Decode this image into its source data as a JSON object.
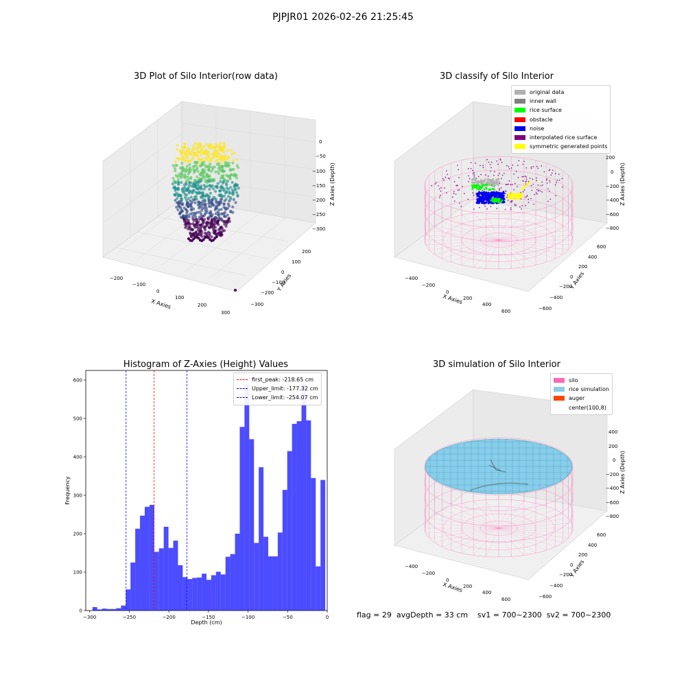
{
  "figure": {
    "suptitle": "PJPJR01 2026-02-26 21:25:45",
    "status_text": "flag = 29  avgDepth = 33 cm    sv1 = 700~2300  sv2 = 700~2300"
  },
  "panels": {
    "raw": {
      "title": "3D Plot of Silo Interior(row data)",
      "xlabel": "X Axies",
      "ylabel": "Y Axies",
      "zlabel": "Z Axies (Depth)",
      "xticks": [
        "−200",
        "−100",
        "0",
        "100",
        "200",
        "300"
      ],
      "yticks": [
        "200",
        "100",
        "0",
        "−100",
        "−200",
        "−300"
      ],
      "zticks": [
        "0",
        "−50",
        "−100",
        "−150",
        "−200",
        "−250",
        "−300"
      ]
    },
    "classify": {
      "title": "3D classify of Silo Interior",
      "xlabel": "X Axies",
      "ylabel": "Y Axies",
      "zlabel": "Z Axies (Depth)",
      "xticks": [
        "−400",
        "−200",
        "0",
        "200",
        "400",
        "600"
      ],
      "yticks": [
        "600",
        "400",
        "200",
        "0",
        "−200",
        "−400",
        "−600"
      ],
      "zticks": [
        "200",
        "0",
        "−200",
        "−400",
        "−600",
        "−800"
      ],
      "legend": [
        {
          "label": "original data",
          "color": "#b0b0b0"
        },
        {
          "label": "inner wall",
          "color": "#808080"
        },
        {
          "label": "rice surface",
          "color": "#00ff00"
        },
        {
          "label": "obstacle",
          "color": "#ff0000"
        },
        {
          "label": "noise",
          "color": "#0000ee"
        },
        {
          "label": "interpolated rice surface",
          "color": "#800080"
        },
        {
          "label": "symmetric generated points",
          "color": "#ffff00"
        }
      ]
    },
    "simulation": {
      "title": "3D simulation of Silo Interior",
      "xlabel": "X Axies",
      "ylabel": "Y Axies",
      "zlabel": "Z Axies (Depth)",
      "xticks": [
        "−400",
        "−200",
        "0",
        "200",
        "400",
        "600"
      ],
      "yticks": [
        "600",
        "400",
        "200",
        "0",
        "−200",
        "−400",
        "−600"
      ],
      "zticks": [
        "400",
        "200",
        "0",
        "−200",
        "−400",
        "−600",
        "−800"
      ],
      "legend": [
        {
          "label": "silo",
          "color": "#ff69b4"
        },
        {
          "label": "rice simulation",
          "color": "#87ceeb"
        },
        {
          "label": "auger",
          "color": "#ff4500"
        },
        {
          "label": "center(100,8)",
          "color": "#ffffff"
        }
      ]
    }
  },
  "chart_data": {
    "type": "bar",
    "title": "Histogram of Z-Axies (Height) Values",
    "xlabel": "Depth (cm)",
    "ylabel": "Frequency",
    "xlim": [
      -305,
      0
    ],
    "ylim": [
      0,
      625
    ],
    "xticks": [
      -300,
      -250,
      -200,
      -150,
      -100,
      -50,
      0
    ],
    "yticks": [
      0,
      100,
      200,
      300,
      400,
      500,
      600
    ],
    "color": "#0000ff",
    "bins": {
      "start": -296.5,
      "width": 6,
      "counts": [
        9,
        3,
        5,
        4,
        4,
        6,
        13,
        55,
        125,
        213,
        247,
        270,
        275,
        153,
        162,
        218,
        163,
        182,
        118,
        87,
        82,
        85,
        86,
        96,
        80,
        92,
        101,
        94,
        140,
        147,
        200,
        478,
        590,
        446,
        176,
        373,
        192,
        141,
        141,
        203,
        314,
        415,
        486,
        493,
        590,
        495,
        345,
        115,
        340
      ]
    },
    "lines": [
      {
        "label": "first_peak: -218.65 cm",
        "x": -218.65,
        "color": "#ff0000"
      },
      {
        "label": "Upper_limit: -177.32 cm",
        "x": -177.32,
        "color": "#0000ff"
      },
      {
        "label": "Lower_limit: -254.07 cm",
        "x": -254.07,
        "color": "#0000ff"
      }
    ]
  }
}
